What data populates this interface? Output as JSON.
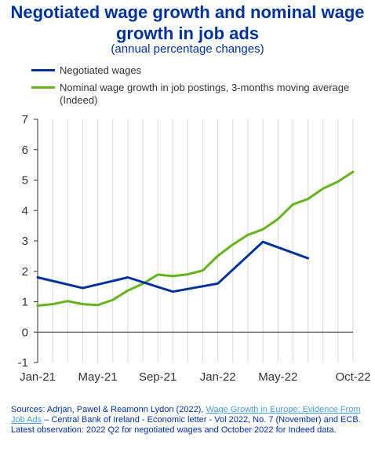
{
  "chart_data": {
    "type": "line",
    "title": "Negotiated wage growth and nominal wage growth in job ads",
    "subtitle": "(annual percentage changes)",
    "x_tick_labels": [
      "Jan-21",
      "May-21",
      "Sep-21",
      "Jan-22",
      "May-22",
      "Oct-22"
    ],
    "ylim": [
      -1,
      7
    ],
    "yticks": [
      -1,
      0,
      1,
      2,
      3,
      4,
      5,
      6,
      7
    ],
    "grid": "vertical",
    "legend_position": "top",
    "series": [
      {
        "name": "Negotiated wages",
        "color": "#003299",
        "x": [
          "2021-01",
          "2021-04",
          "2021-07",
          "2021-10",
          "2022-01",
          "2022-04",
          "2022-07"
        ],
        "values": [
          1.8,
          1.45,
          1.8,
          1.33,
          1.6,
          2.97,
          2.43
        ]
      },
      {
        "name": "Nominal wage growth in job postings, 3-months moving average (Indeed)",
        "color": "#66b21f",
        "x": [
          "2021-01",
          "2021-02",
          "2021-03",
          "2021-04",
          "2021-05",
          "2021-06",
          "2021-07",
          "2021-08",
          "2021-09",
          "2021-10",
          "2021-11",
          "2021-12",
          "2022-01",
          "2022-02",
          "2022-03",
          "2022-04",
          "2022-05",
          "2022-06",
          "2022-07",
          "2022-08",
          "2022-09",
          "2022-10"
        ],
        "values": [
          0.87,
          0.92,
          1.02,
          0.92,
          0.89,
          1.06,
          1.37,
          1.59,
          1.89,
          1.84,
          1.9,
          2.03,
          2.51,
          2.88,
          3.2,
          3.38,
          3.72,
          4.2,
          4.38,
          4.72,
          4.95,
          5.27
        ]
      }
    ]
  },
  "sources": {
    "prefix": "Sources: Adrjan, Pawel & Reamonn Lydon (2022), ",
    "link_text": "Wage Growth in Europe: Evidence From Job Ads",
    "suffix": " – Central Bank of Ireland - Economic letter -  Vol 2022, No. 7 (November) and ECB.",
    "latest": "Latest observation: 2022 Q2 for negotiated wages and October 2022 for Indeed data."
  }
}
